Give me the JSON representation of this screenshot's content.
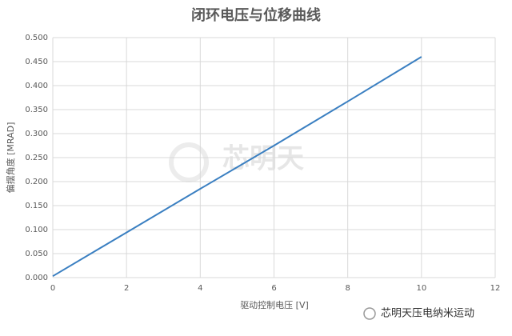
{
  "chart_data": {
    "type": "line",
    "title": "闭环电压与位移曲线",
    "x_label": "驱动控制电压 [V]",
    "y_label": "偏摆角度 [MRAD]",
    "x": [
      0,
      2,
      4,
      6,
      8,
      10
    ],
    "series": [
      {
        "color": "#3a7fc1",
        "values": [
          0.003,
          0.094,
          0.185,
          0.275,
          0.367,
          0.46
        ]
      }
    ],
    "xlim": [
      0,
      12
    ],
    "xticks": [
      0,
      2,
      4,
      6,
      8,
      10,
      12
    ],
    "ylim": [
      0,
      0.5
    ],
    "yticks": [
      {
        "value": 0,
        "label": "0.000"
      },
      {
        "value": 0.05,
        "label": "0.050"
      },
      {
        "value": 0.1,
        "label": "0.100"
      },
      {
        "value": 0.15,
        "label": "0.150"
      },
      {
        "value": 0.2,
        "label": "0.200"
      },
      {
        "value": 0.25,
        "label": "0.250"
      },
      {
        "value": 0.3,
        "label": "0.300"
      },
      {
        "value": 0.35,
        "label": "0.350"
      },
      {
        "value": 0.4,
        "label": "0.400"
      },
      {
        "value": 0.45,
        "label": "0.450"
      },
      {
        "value": 0.5,
        "label": "0.500"
      }
    ],
    "grid": true
  },
  "watermark": "芯明天",
  "footer": "芯明天压电纳米运动"
}
